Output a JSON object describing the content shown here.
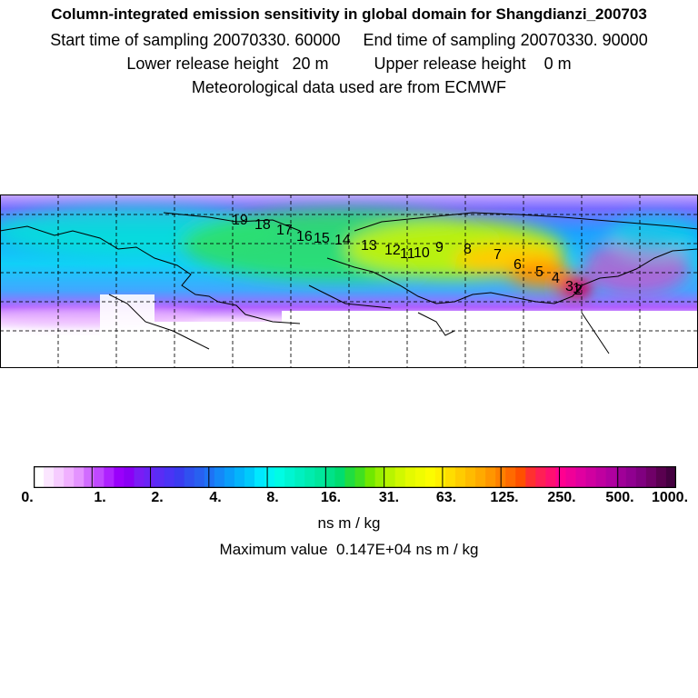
{
  "header": {
    "title": "Column-integrated emission sensitivity in global domain for Shangdianzi_200703",
    "line2": "Start time of sampling 20070330. 60000     End time of sampling 20070330. 90000",
    "line3": "Lower release height   20 m          Upper release height    0 m",
    "line4": "Meteorological data used are from ECMWF"
  },
  "trajectory_labels": [
    "1",
    "2",
    "3",
    "4",
    "5",
    "6",
    "7",
    "8",
    "9",
    "10",
    "11",
    "12",
    "13",
    "14",
    "15",
    "16",
    "17",
    "18",
    "19"
  ],
  "colorbar": {
    "ticks": [
      "0.",
      "1.",
      "2.",
      "4.",
      "8.",
      "16.",
      "31.",
      "63.",
      "125.",
      "250.",
      "500.",
      "1000."
    ],
    "colors": [
      "#ffffff",
      "#fbe6ff",
      "#f6ccff",
      "#f0b0ff",
      "#e493ff",
      "#d16cff",
      "#c048ff",
      "#ae22ff",
      "#9a00fb",
      "#8a00f5",
      "#7a1cf5",
      "#6a24f5",
      "#5a2cf5",
      "#4a34f5",
      "#3a3cf0",
      "#3050f0",
      "#2860f0",
      "#1e72f5",
      "#1488f8",
      "#0a9efa",
      "#04b4fb",
      "#00cafb",
      "#00e8ff",
      "#00f4f4",
      "#00fce4",
      "#00f5d2",
      "#00f0c0",
      "#00ecae",
      "#00e79c",
      "#00e288",
      "#00dd70",
      "#20dd40",
      "#40e020",
      "#70e800",
      "#98ef00",
      "#b8f400",
      "#d0f800",
      "#e4fa00",
      "#f0fc00",
      "#fcfc00",
      "#fff000",
      "#ffdd00",
      "#ffcc00",
      "#ffbb00",
      "#ffaa00",
      "#ff9600",
      "#ff8000",
      "#ff6a00",
      "#ff5000",
      "#ff3030",
      "#ff1f55",
      "#ff1070",
      "#ff0090",
      "#f00098",
      "#e000a0",
      "#d000a0",
      "#c000a0",
      "#b000a0",
      "#a00098",
      "#900090",
      "#800080",
      "#700068",
      "#5a0050",
      "#440040"
    ],
    "units": "ns m / kg",
    "max_label": "Maximum value  0.147E+04 ns m / kg"
  }
}
